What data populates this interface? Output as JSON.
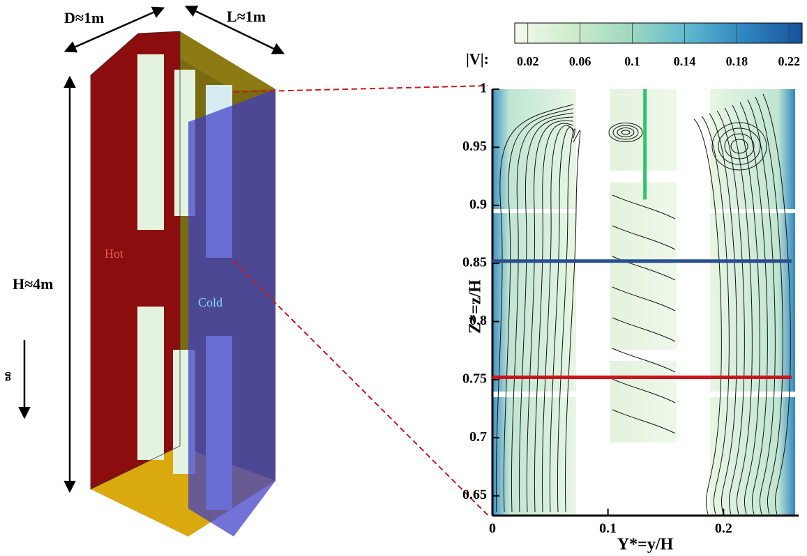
{
  "diagram": {
    "depth_label": "D≈1m",
    "length_label": "L≈1m",
    "height_label": "H≈4m",
    "hot_label": "Hot",
    "cold_label": "Cold",
    "gravity_label": "g"
  },
  "chart_data": {
    "type": "field",
    "xlabel": "Y*=y/H",
    "ylabel": "Z*=z/H",
    "xlim": [
      0,
      0.265
    ],
    "ylim": [
      0.633,
      1.0
    ],
    "xticks": [
      0,
      0.1,
      0.2
    ],
    "yticks": [
      0.65,
      0.7,
      0.75,
      0.8,
      0.85,
      0.9,
      0.95,
      1
    ],
    "colorbar": {
      "label": "|V|:",
      "lim": [
        0.01,
        0.23
      ],
      "ticks": [
        0.02,
        0.06,
        0.1,
        0.14,
        0.18,
        0.22
      ],
      "colors": [
        "#f4faf0",
        "#cfeccb",
        "#9fd9c0",
        "#5fb8cf",
        "#2f86bf",
        "#16539c"
      ]
    },
    "lines": [
      {
        "orientation": "horizontal",
        "value": 0.852,
        "color": "#2b4f8e"
      },
      {
        "orientation": "horizontal",
        "value": 0.752,
        "color": "#c8161c"
      },
      {
        "orientation": "vertical",
        "value": 0.132,
        "span": [
          0.905,
          1.0
        ],
        "color": "#2fc46b"
      }
    ]
  }
}
